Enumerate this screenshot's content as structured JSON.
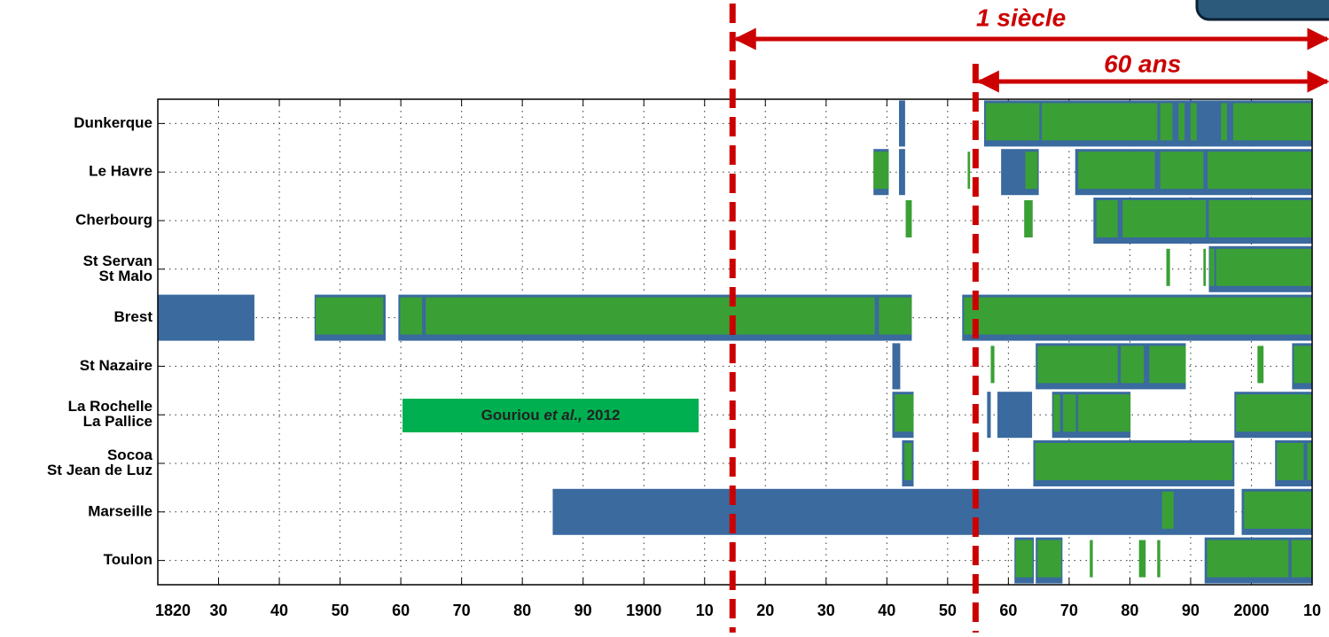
{
  "chart_data": {
    "type": "timeline",
    "categories": [
      [
        "Dunkerque"
      ],
      [
        "Le Havre"
      ],
      [
        "Cherbourg"
      ],
      [
        "St Servan",
        "St Malo"
      ],
      [
        "Brest"
      ],
      [
        "St Nazaire"
      ],
      [
        "La Rochelle",
        "La Pallice"
      ],
      [
        "Socoa",
        "St Jean de Luz"
      ],
      [
        "Marseille"
      ],
      [
        "Toulon"
      ]
    ],
    "xlim": [
      1820,
      2010
    ],
    "xticks": [
      1820,
      {
        "value": 1830,
        "label": "30"
      },
      {
        "value": 1840,
        "label": "40"
      },
      {
        "value": 1850,
        "label": "50"
      },
      {
        "value": 1860,
        "label": "60"
      },
      {
        "value": 1870,
        "label": "70"
      },
      {
        "value": 1880,
        "label": "80"
      },
      {
        "value": 1890,
        "label": "90"
      },
      1900,
      {
        "value": 1910,
        "label": "10"
      },
      {
        "value": 1920,
        "label": "20"
      },
      {
        "value": 1930,
        "label": "30"
      },
      {
        "value": 1940,
        "label": "40"
      },
      {
        "value": 1950,
        "label": "50"
      },
      {
        "value": 1960,
        "label": "60"
      },
      {
        "value": 1970,
        "label": "70"
      },
      {
        "value": 1980,
        "label": "80"
      },
      {
        "value": 1990,
        "label": "90"
      },
      2000,
      {
        "value": 2010,
        "label": "10"
      }
    ],
    "grid": true,
    "series": [
      {
        "color": "#3a6a9e",
        "segments": [
          [
            [
              1942,
              1943
            ],
            [
              1956,
              2010
            ]
          ],
          [
            [
              1937.8,
              1940.3
            ],
            [
              1942,
              1943
            ],
            [
              1958.8,
              1965
            ],
            [
              1971,
              2010
            ]
          ],
          [
            [
              1974,
              2010
            ]
          ],
          [
            [
              1993,
              2010
            ]
          ],
          [
            [
              1820,
              1835.9
            ],
            [
              1845.8,
              1857.5
            ],
            [
              1859.6,
              1944.1
            ],
            [
              1952.4,
              2010
            ]
          ],
          [
            [
              1940.9,
              1942.2
            ],
            [
              1964.5,
              1989.2
            ],
            [
              2006.7,
              2010
            ]
          ],
          [
            [
              1940.9,
              1944.4
            ],
            [
              1956.5,
              1957.1
            ],
            [
              1958.2,
              1963.9
            ],
            [
              1967.2,
              1980.1
            ],
            [
              1997.2,
              2010
            ]
          ],
          [
            [
              1942.5,
              1944.4
            ],
            [
              1964.1,
              1997.2
            ],
            [
              2003.9,
              2010
            ]
          ],
          [
            [
              1885,
              1997.2
            ],
            [
              1998.4,
              2010
            ]
          ],
          [
            [
              1961,
              1964.2
            ],
            [
              1964.5,
              1968.9
            ],
            [
              1992.3,
              2010
            ]
          ]
        ]
      },
      {
        "color": "#3aa035",
        "segments": [
          [
            [
              1956.3,
              1965.1
            ],
            [
              1965.5,
              1984.5
            ],
            [
              1985,
              1987
            ],
            [
              1988,
              1989
            ],
            [
              1990,
              1991
            ],
            [
              1995,
              1996
            ],
            [
              1997,
              2010
            ]
          ],
          [
            [
              1937.8,
              1940.3
            ],
            [
              1953.3,
              1953.7
            ],
            [
              1962.8,
              1964.8
            ],
            [
              1971.5,
              1984.1
            ],
            [
              1985,
              1992.1
            ],
            [
              1992.8,
              2010
            ]
          ],
          [
            [
              1943.1,
              1944.1
            ],
            [
              1962.6,
              1964
            ],
            [
              1974.5,
              1978
            ],
            [
              1978.8,
              1992.5
            ],
            [
              1993,
              2010
            ]
          ],
          [
            [
              1986,
              1986.6
            ],
            [
              1992.1,
              1992.5
            ],
            [
              1993.1,
              1993.9
            ],
            [
              1994.2,
              2010
            ]
          ],
          [
            [
              1846,
              1857.1
            ],
            [
              1859.9,
              1863.5
            ],
            [
              1864.1,
              1938
            ],
            [
              1938.7,
              1944.1
            ],
            [
              1952.7,
              2010
            ]
          ],
          [
            [
              1957.1,
              1957.7
            ],
            [
              1964.8,
              1978
            ],
            [
              1978.5,
              1982.3
            ],
            [
              1983.2,
              1989.2
            ],
            [
              2001,
              2002
            ],
            [
              2007,
              2010
            ]
          ],
          [
            [
              1941.3,
              1944.4
            ],
            [
              1967.4,
              1968.5
            ],
            [
              1969,
              1971.1
            ],
            [
              1971.5,
              1980.1
            ],
            [
              1997.5,
              2010
            ]
          ],
          [
            [
              1942.9,
              1944.1
            ],
            [
              1964.4,
              1996.9
            ],
            [
              2004.2,
              2008.6
            ],
            [
              2009.2,
              2010
            ]
          ],
          [
            [
              1985.3,
              1987.2
            ],
            [
              1998.8,
              2010
            ]
          ],
          [
            [
              1961.2,
              1964
            ],
            [
              1964.8,
              1968.7
            ],
            [
              1973.4,
              1973.9
            ],
            [
              1981.5,
              1982.6
            ],
            [
              1984.5,
              1985
            ],
            [
              1992.7,
              2006.1
            ],
            [
              2006.6,
              2010
            ]
          ]
        ]
      }
    ],
    "markers": [
      {
        "x": 1914.6,
        "label": "1 siècle"
      },
      {
        "x": 1954.6,
        "label": "60 ans"
      }
    ],
    "marker_color": "#cc0000",
    "source": {
      "parts": [
        "Gouriou ",
        "et al.,",
        " 2012"
      ],
      "color": "#00b050"
    }
  }
}
